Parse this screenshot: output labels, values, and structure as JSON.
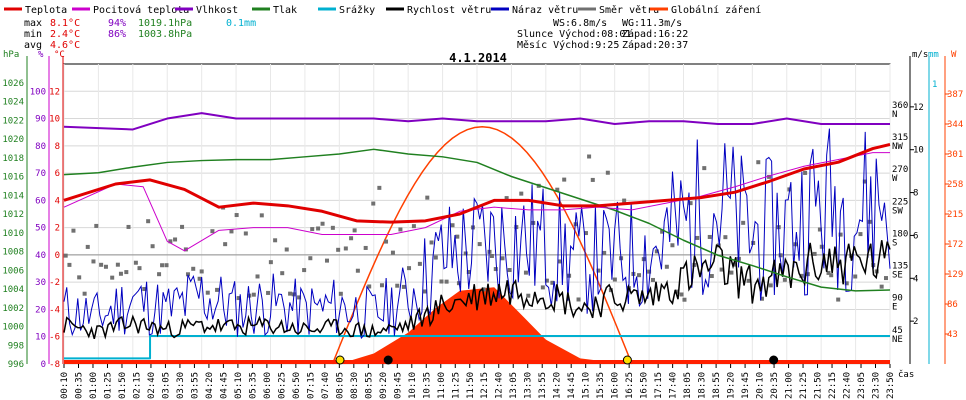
{
  "chart_data": {
    "type": "line",
    "title": "4.1.2014",
    "legend": [
      {
        "name": "Teplota",
        "color": "#e00000"
      },
      {
        "name": "Pocitová teplota",
        "color": "#cc00cc"
      },
      {
        "name": "Vlhkost",
        "color": "#8000c0"
      },
      {
        "name": "Tlak",
        "color": "#208020"
      },
      {
        "name": "Srážky",
        "color": "#00b0d0"
      },
      {
        "name": "Rychlost větru",
        "color": "#000000"
      },
      {
        "name": "Náraz větru",
        "color": "#0000c0"
      },
      {
        "name": "Směr větru",
        "color": "#707070"
      },
      {
        "name": "Globální záření",
        "color": "#ff4000"
      }
    ],
    "stats": {
      "labels": {
        "max": "max",
        "min": "min",
        "avg": "avg"
      },
      "max": {
        "temp": "8.1°C",
        "hum": "94%",
        "press": "1019.1hPa",
        "rain": "0.1mm"
      },
      "min": {
        "temp": "2.4°C",
        "hum": "86%",
        "press": "1003.8hPa"
      },
      "avg": {
        "temp": "4.6°C"
      }
    },
    "info": {
      "ws": "WS:6.8m/s",
      "wg": "WG:11.3m/s",
      "slunce": "Slunce Východ:08:01",
      "slunce_zapad": "Západ:16:22",
      "mesic": "Měsíc  Východ:9:25",
      "mesic_zapad": "Západ:20:37"
    },
    "axes": {
      "hpa_label": "hPa",
      "pct_label": "%",
      "c_label": "°C",
      "ms_label": "m/s",
      "mm_label": "mm",
      "w_label": "W",
      "time_label": "čas",
      "hpa_ticks": [
        "1026",
        "1024",
        "1022",
        "1020",
        "1018",
        "1016",
        "1014",
        "1012",
        "1010",
        "1008",
        "1006",
        "1004",
        "1002",
        "1000",
        "998",
        "996"
      ],
      "pct_ticks": [
        "100",
        "90",
        "80",
        "70",
        "60",
        "50",
        "40",
        "30",
        "20",
        "10",
        "0"
      ],
      "c_ticks": [
        "12",
        "10",
        "8",
        "6",
        "4",
        "2",
        "0",
        "-2",
        "-4",
        "-6",
        "-8"
      ],
      "dir_ticks": [
        "360 N",
        "315 NW",
        "270 W",
        "225 SW",
        "180 S",
        "135 SE",
        "90 E",
        "45 NE"
      ],
      "ms_ticks": [
        "12",
        "10",
        "8",
        "6",
        "4",
        "2"
      ],
      "mm_ticks": [
        "1"
      ],
      "w_ticks": [
        "387",
        "344",
        "301",
        "258",
        "215",
        "172",
        "129",
        "86",
        "43"
      ],
      "x_ticks": [
        "00:10",
        "00:35",
        "01:00",
        "01:25",
        "01:50",
        "02:15",
        "02:40",
        "03:05",
        "03:30",
        "03:55",
        "04:20",
        "04:45",
        "05:10",
        "05:35",
        "06:00",
        "06:25",
        "06:50",
        "07:15",
        "07:40",
        "08:05",
        "08:30",
        "08:55",
        "09:20",
        "09:45",
        "10:10",
        "10:35",
        "11:00",
        "11:25",
        "11:50",
        "12:15",
        "12:40",
        "13:05",
        "13:30",
        "13:55",
        "14:20",
        "14:45",
        "15:10",
        "15:35",
        "16:00",
        "16:25",
        "16:50",
        "17:15",
        "17:40",
        "18:05",
        "18:30",
        "18:55",
        "19:20",
        "19:45",
        "20:10",
        "20:35",
        "21:00",
        "21:25",
        "21:50",
        "22:15",
        "22:40",
        "23:05",
        "23:30",
        "23:50"
      ],
      "ylim_c": [
        -8,
        14
      ],
      "ylim_hpa": [
        996,
        1028
      ],
      "ylim_pct": [
        0,
        110
      ],
      "ylim_ms": [
        0,
        14
      ],
      "ylim_w": [
        0,
        430
      ]
    },
    "series": [
      {
        "name": "Teplota",
        "x": [
          0,
          1.5,
          2.5,
          3.5,
          4.5,
          5.5,
          6.5,
          7.5,
          8.5,
          9.5,
          10.5,
          11.5,
          12.5,
          13.5,
          14.5,
          15.5,
          16.5,
          17.5,
          18.5,
          19.5,
          20.5,
          21.5,
          22.5,
          23.5,
          24
        ],
        "values": [
          4,
          5.2,
          5.5,
          4.8,
          3.5,
          3.8,
          3.6,
          3.2,
          2.5,
          2.4,
          2.5,
          3,
          4,
          4,
          3.6,
          3.6,
          3.8,
          4,
          4.2,
          4.6,
          5.4,
          6.3,
          6.8,
          7.8,
          8.1
        ]
      },
      {
        "name": "Pocitová teplota",
        "x": [
          0,
          1.5,
          2.3,
          3,
          3.5,
          4.5,
          5.5,
          6.5,
          7.5,
          8.5,
          9.5,
          10.5,
          11.5,
          12.5,
          13.5,
          14.5,
          15.5,
          16.5,
          17.5,
          18.5,
          19.5,
          20.5,
          21.5,
          22.5,
          23.5,
          24
        ],
        "values": [
          3.5,
          5.2,
          5,
          1,
          0.3,
          1.8,
          2,
          2,
          1.5,
          1.5,
          1.5,
          2,
          3.2,
          3.5,
          3.3,
          3.3,
          3.5,
          3.3,
          3.8,
          4.3,
          5,
          5.8,
          6.5,
          7,
          7.5,
          7.5
        ]
      },
      {
        "name": "Vlhkost",
        "x": [
          0,
          2,
          3,
          4,
          5,
          6,
          7,
          8,
          9,
          10,
          11,
          12,
          13,
          14,
          15,
          16,
          17,
          18,
          19,
          20,
          21,
          22,
          23,
          24
        ],
        "values": [
          87,
          86,
          90,
          92,
          90,
          90,
          90,
          90,
          90,
          89,
          90,
          89,
          89,
          89,
          90,
          88,
          89,
          89,
          88,
          88,
          90,
          88,
          88,
          88
        ]
      },
      {
        "name": "Tlak",
        "x": [
          0,
          1,
          2,
          3,
          4,
          5,
          6,
          7,
          8,
          9,
          10,
          11,
          12,
          13,
          14,
          15,
          16,
          17,
          18,
          19,
          20,
          21,
          22,
          23,
          24
        ],
        "values": [
          1016.2,
          1016.4,
          1017,
          1017.5,
          1017.7,
          1017.8,
          1017.8,
          1018.1,
          1018.4,
          1018.9,
          1018.4,
          1018.1,
          1017.5,
          1016,
          1014.8,
          1013.6,
          1012.4,
          1011,
          1009.2,
          1007.6,
          1006.5,
          1005.3,
          1004.2,
          1003.8,
          1003.9
        ]
      },
      {
        "name": "Srážky",
        "x": [
          0,
          2.5,
          2.5,
          24
        ],
        "values": [
          0.02,
          0.02,
          0.1,
          0.1
        ]
      },
      {
        "name": "Rychlost větru",
        "x": [
          0,
          1,
          2,
          3,
          4,
          5,
          6,
          7,
          8,
          9,
          10,
          11,
          12,
          13,
          14,
          15,
          16,
          17,
          18,
          19,
          20,
          21,
          22,
          23,
          24
        ],
        "values": [
          1.8,
          1.5,
          1.9,
          1.6,
          1.8,
          1.7,
          1.8,
          1.6,
          1.7,
          1.5,
          1.8,
          2.7,
          3.2,
          3.5,
          3.4,
          2.6,
          3.1,
          3.1,
          4,
          4.6,
          3.7,
          4.1,
          4.8,
          4.8,
          4.7
        ]
      },
      {
        "name": "Náraz větru",
        "x": [
          0,
          1,
          2,
          3,
          4,
          5,
          6,
          7,
          8,
          9,
          10,
          11,
          12,
          13,
          14,
          15,
          16,
          17,
          18,
          19,
          20,
          21,
          22,
          23,
          24
        ],
        "values": [
          2.5,
          2.2,
          3,
          2.5,
          3.2,
          2.6,
          2.8,
          2.5,
          2.7,
          2.3,
          3.2,
          5,
          5.5,
          5.8,
          5.6,
          4.8,
          5,
          5.2,
          6.5,
          7.5,
          6,
          6.5,
          7.5,
          7.2,
          7.8
        ]
      },
      {
        "name": "Globální záření",
        "x": [
          8,
          9,
          10,
          10.8,
          11.5,
          12.5,
          13.3,
          14,
          15,
          16,
          16.4
        ],
        "values": [
          0,
          15,
          45,
          80,
          105,
          110,
          70,
          35,
          8,
          2,
          0
        ]
      }
    ]
  }
}
